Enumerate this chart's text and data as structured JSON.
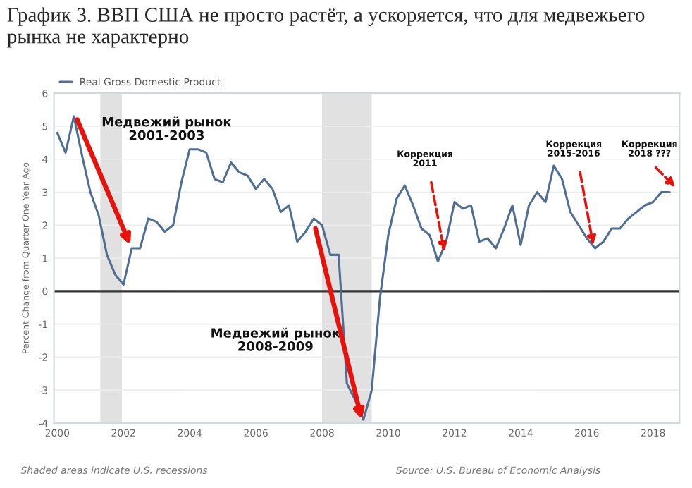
{
  "chart_data": {
    "type": "line",
    "title": "График 3. ВВП США не просто растёт, а ускоряется, что для медвежьего рынка не характерно",
    "ylabel": "Percent Change from Quarter One Year Ago",
    "x": [
      2000.0,
      2000.25,
      2000.5,
      2000.75,
      2001.0,
      2001.25,
      2001.5,
      2001.75,
      2002.0,
      2002.25,
      2002.5,
      2002.75,
      2003.0,
      2003.25,
      2003.5,
      2003.75,
      2004.0,
      2004.25,
      2004.5,
      2004.75,
      2005.0,
      2005.25,
      2005.5,
      2005.75,
      2006.0,
      2006.25,
      2006.5,
      2006.75,
      2007.0,
      2007.25,
      2007.5,
      2007.75,
      2008.0,
      2008.25,
      2008.5,
      2008.75,
      2009.0,
      2009.25,
      2009.5,
      2009.75,
      2010.0,
      2010.25,
      2010.5,
      2010.75,
      2011.0,
      2011.25,
      2011.5,
      2011.75,
      2012.0,
      2012.25,
      2012.5,
      2012.75,
      2013.0,
      2013.25,
      2013.5,
      2013.75,
      2014.0,
      2014.25,
      2014.5,
      2014.75,
      2015.0,
      2015.25,
      2015.5,
      2015.75,
      2016.0,
      2016.25,
      2016.5,
      2016.75,
      2017.0,
      2017.25,
      2017.5,
      2017.75,
      2018.0,
      2018.25,
      2018.5
    ],
    "series": [
      {
        "name": "Real Gross Domestic Product",
        "color": "#4e6e94",
        "values": [
          4.8,
          4.2,
          5.3,
          4.1,
          3.0,
          2.3,
          1.1,
          0.5,
          0.2,
          1.3,
          1.3,
          2.2,
          2.1,
          1.8,
          2.0,
          3.3,
          4.3,
          4.3,
          4.2,
          3.4,
          3.3,
          3.9,
          3.6,
          3.5,
          3.1,
          3.4,
          3.1,
          2.4,
          2.6,
          1.5,
          1.8,
          2.2,
          2.0,
          1.1,
          1.1,
          -2.8,
          -3.3,
          -3.9,
          -3.0,
          -0.2,
          1.7,
          2.8,
          3.2,
          2.6,
          1.9,
          1.7,
          0.9,
          1.5,
          2.7,
          2.5,
          2.6,
          1.5,
          1.6,
          1.3,
          1.9,
          2.6,
          1.4,
          2.6,
          3.0,
          2.7,
          3.8,
          3.4,
          2.4,
          2.0,
          1.6,
          1.3,
          1.5,
          1.9,
          1.9,
          2.2,
          2.4,
          2.6,
          2.7,
          3.0,
          3.0
        ]
      }
    ],
    "xlim": [
      1999.9,
      2018.8
    ],
    "xticks": [
      2000,
      2002,
      2004,
      2006,
      2008,
      2010,
      2012,
      2014,
      2016,
      2018
    ],
    "ylim": [
      -4,
      6
    ],
    "yticks": [
      -4,
      -3,
      -2,
      -1,
      0,
      1,
      2,
      3,
      4,
      5,
      6
    ],
    "grid": "y",
    "legend": "top left",
    "ref_lines": [
      {
        "axis": "y",
        "value": 0,
        "color": "#333333"
      }
    ],
    "bands": [
      {
        "axis": "x",
        "from": 2001.3,
        "to": 2001.95,
        "color": "#e1e1e1"
      },
      {
        "axis": "x",
        "from": 2008.0,
        "to": 2009.5,
        "color": "#e1e1e1"
      }
    ],
    "annotations": [
      "Медвежий рынок\n2001-2003",
      "Медвежий рынок\n2008-2009",
      "Коррекция\n2011",
      "Коррекция\n2015-2016",
      "Коррекция\n2018 ???",
      "Shaded areas indicate U.S. recessions",
      "Source: U.S. Bureau of Economic Analysis"
    ]
  }
}
